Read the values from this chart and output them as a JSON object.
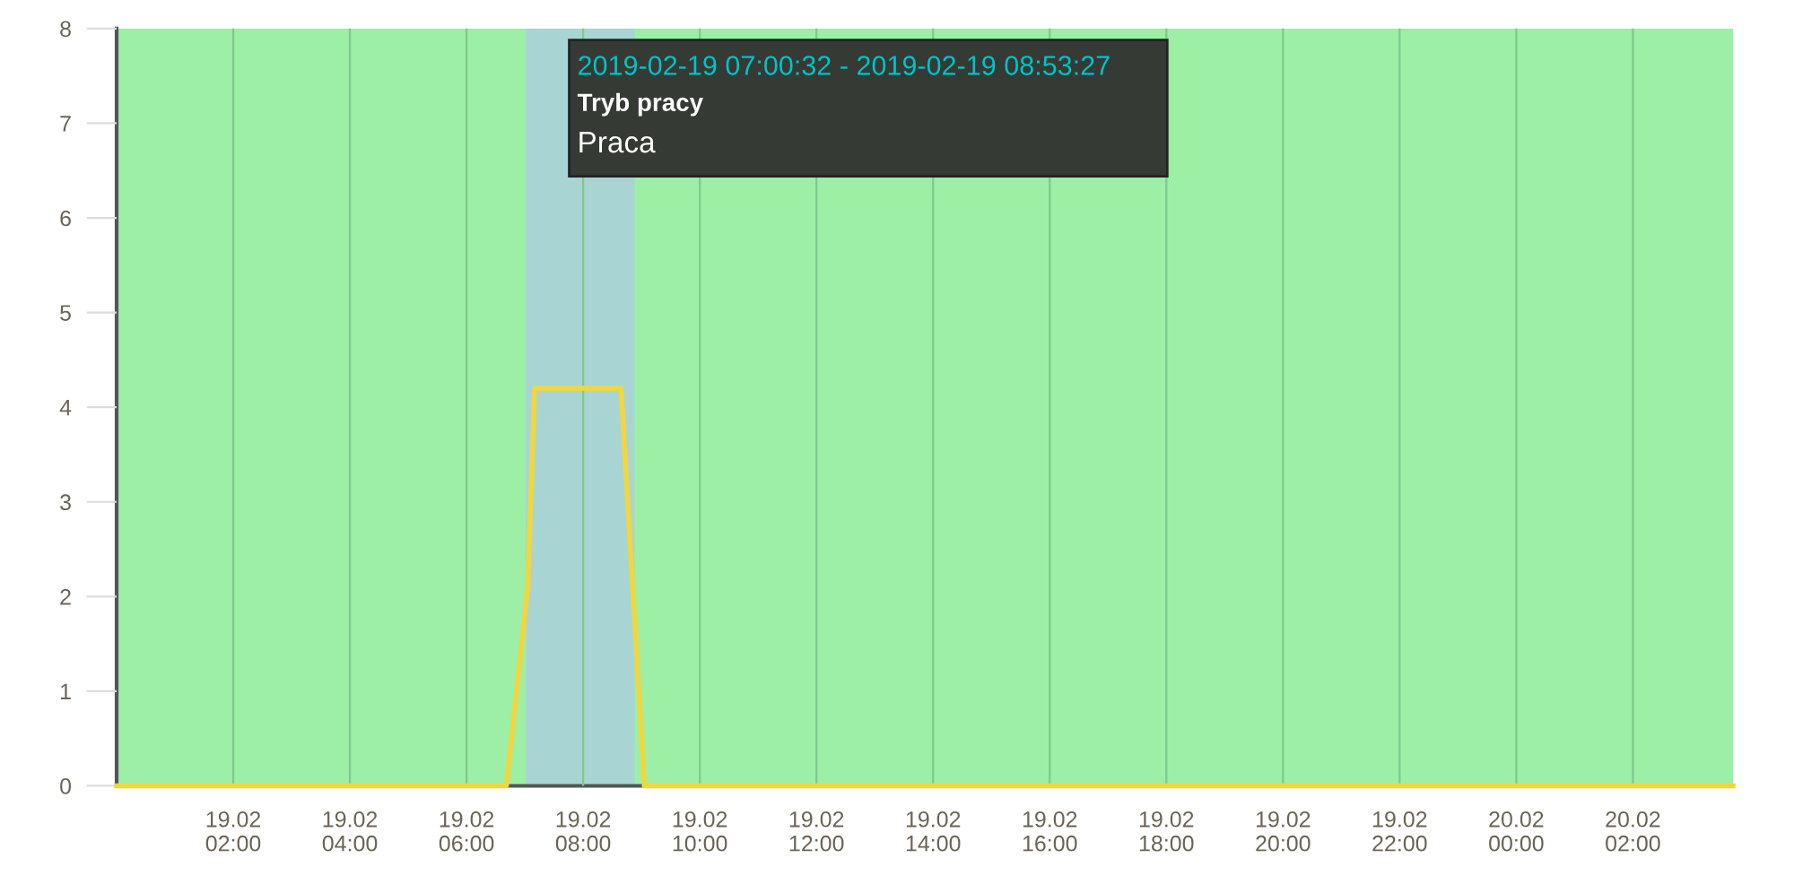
{
  "chart_data": {
    "type": "line",
    "x": [
      "2019-02-19T00:00",
      "2019-02-19T06:41",
      "2019-02-19T07:03",
      "2019-02-19T07:10",
      "2019-02-19T08:39",
      "2019-02-19T09:03",
      "2019-02-20T03:43"
    ],
    "series": [
      {
        "color": "#f2d63c",
        "values": [
          0,
          0,
          2.1,
          4.2,
          4.2,
          0,
          0
        ]
      }
    ],
    "xlim": [
      "2019-02-19T00:00",
      "2019-02-20T03:43"
    ],
    "xticks": [
      {
        "value": "2019-02-19T02:00",
        "label": "19.02\n02:00"
      },
      {
        "value": "2019-02-19T04:00",
        "label": "19.02\n04:00"
      },
      {
        "value": "2019-02-19T06:00",
        "label": "19.02\n06:00"
      },
      {
        "value": "2019-02-19T08:00",
        "label": "19.02\n08:00"
      },
      {
        "value": "2019-02-19T10:00",
        "label": "19.02\n10:00"
      },
      {
        "value": "2019-02-19T12:00",
        "label": "19.02\n12:00"
      },
      {
        "value": "2019-02-19T14:00",
        "label": "19.02\n14:00"
      },
      {
        "value": "2019-02-19T16:00",
        "label": "19.02\n16:00"
      },
      {
        "value": "2019-02-19T18:00",
        "label": "19.02\n18:00"
      },
      {
        "value": "2019-02-19T20:00",
        "label": "19.02\n20:00"
      },
      {
        "value": "2019-02-19T22:00",
        "label": "19.02\n22:00"
      },
      {
        "value": "2019-02-20T00:00",
        "label": "20.02\n00:00"
      },
      {
        "value": "2019-02-20T02:00",
        "label": "20.02\n02:00"
      }
    ],
    "ylim": [
      0,
      8
    ],
    "yticks": [
      0,
      1,
      2,
      3,
      4,
      5,
      6,
      7,
      8
    ],
    "grid": "x",
    "marker": "none",
    "line_style": "solid",
    "bands": [
      {
        "axis": "x",
        "from": "2019-02-19T00:00",
        "to": "2019-02-20T03:43",
        "color": "#9cefa5"
      },
      {
        "axis": "x",
        "from": "2019-02-19T07:01",
        "to": "2019-02-19T08:53",
        "color": "#a8d5d3"
      }
    ],
    "annotations": [
      "2019-02-19 07:00:32 - 2019-02-19 08:53:27",
      "Tryb pracy",
      "Praca"
    ]
  }
}
